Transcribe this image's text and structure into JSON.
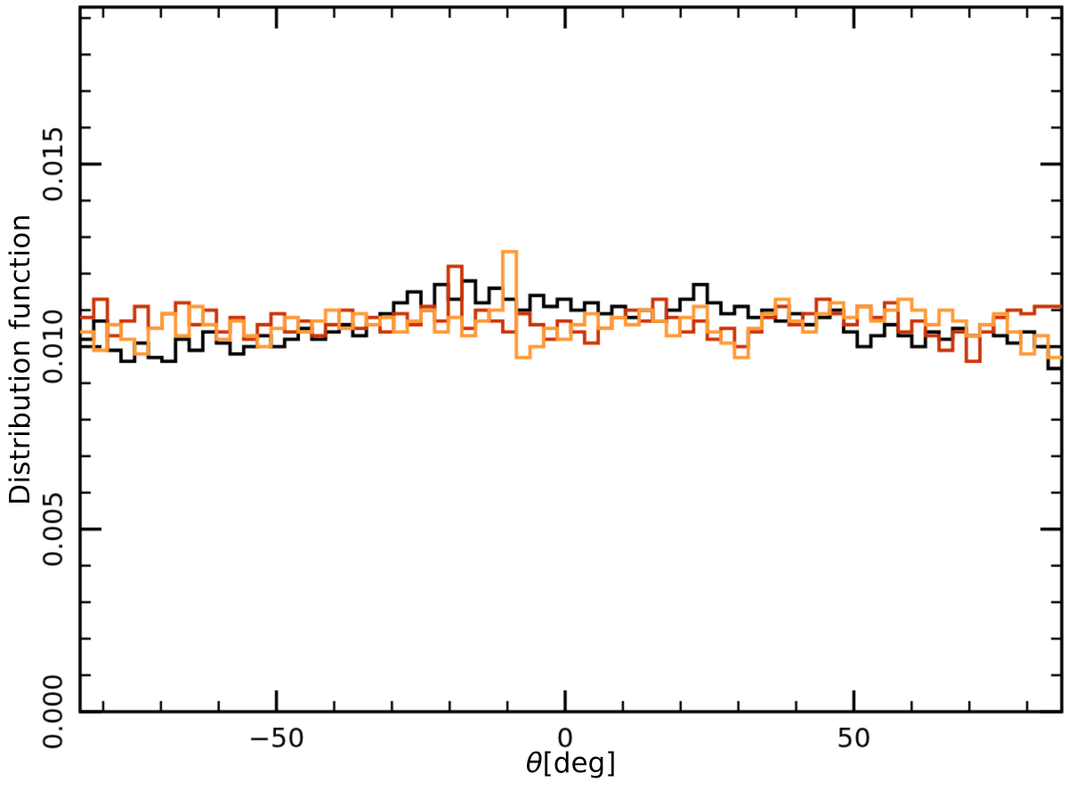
{
  "figure": {
    "background": "#ffffff",
    "ylabel": "Distribution function",
    "xlabel_theta": "θ",
    "xlabel_rest": "[deg]"
  },
  "chart_data": {
    "type": "line",
    "style": "step-histogram",
    "title": "",
    "xlabel": "θ[deg]",
    "ylabel": "Distribution function",
    "xlim": [
      -84,
      86
    ],
    "ylim": [
      0,
      0.0193
    ],
    "grid": false,
    "legend": "none",
    "x_major_ticks": [
      -50,
      0,
      50
    ],
    "x_major_labels": [
      "−50",
      "0",
      "50"
    ],
    "x_minor_step": 10,
    "y_major_ticks": [
      0,
      0.005,
      0.01,
      0.015
    ],
    "y_major_labels": [
      "0.000",
      "0.005",
      "0.010",
      "0.015"
    ],
    "y_minor_step": 0.001,
    "bin_start": -84,
    "bin_width": 2.3611,
    "series": [
      {
        "name": "black-histogram",
        "color": "#000000",
        "values": [
          0.0102,
          0.0107,
          0.0099,
          0.0096,
          0.0101,
          0.0097,
          0.0096,
          0.0102,
          0.0099,
          0.0104,
          0.0101,
          0.0098,
          0.01,
          0.0103,
          0.01,
          0.0102,
          0.0105,
          0.0102,
          0.0104,
          0.0106,
          0.0103,
          0.0106,
          0.0109,
          0.0112,
          0.0115,
          0.011,
          0.0117,
          0.0113,
          0.0118,
          0.0112,
          0.0116,
          0.0113,
          0.011,
          0.0114,
          0.0111,
          0.0113,
          0.011,
          0.0112,
          0.0109,
          0.0111,
          0.0108,
          0.011,
          0.0107,
          0.011,
          0.0113,
          0.0117,
          0.0112,
          0.0109,
          0.0111,
          0.0108,
          0.011,
          0.0107,
          0.0109,
          0.0106,
          0.0108,
          0.011,
          0.0104,
          0.01,
          0.0103,
          0.0106,
          0.0103,
          0.01,
          0.0104,
          0.0102,
          0.0105,
          0.0103,
          0.0106,
          0.0103,
          0.0101,
          0.0104,
          0.01,
          0.0094
        ]
      },
      {
        "name": "red-histogram",
        "color": "#cc3305",
        "values": [
          0.0108,
          0.0113,
          0.0103,
          0.0107,
          0.0111,
          0.0105,
          0.0109,
          0.0112,
          0.0106,
          0.011,
          0.0104,
          0.0108,
          0.0102,
          0.0106,
          0.0109,
          0.0104,
          0.0107,
          0.0103,
          0.0106,
          0.011,
          0.0105,
          0.0108,
          0.0104,
          0.0109,
          0.0106,
          0.0111,
          0.0107,
          0.0122,
          0.0105,
          0.011,
          0.0107,
          0.0104,
          0.0109,
          0.0106,
          0.0102,
          0.0107,
          0.0104,
          0.0101,
          0.0105,
          0.0108,
          0.011,
          0.0107,
          0.0113,
          0.0108,
          0.0104,
          0.0107,
          0.0102,
          0.0105,
          0.01,
          0.0104,
          0.0108,
          0.0111,
          0.0106,
          0.0109,
          0.0113,
          0.0109,
          0.0106,
          0.0111,
          0.0108,
          0.0112,
          0.0104,
          0.0107,
          0.0103,
          0.0099,
          0.0104,
          0.0096,
          0.0104,
          0.0108,
          0.011,
          0.0109,
          0.0111,
          0.0111
        ]
      },
      {
        "name": "orange-histogram",
        "color": "#ff9933",
        "values": [
          0.0104,
          0.0099,
          0.0106,
          0.0102,
          0.0098,
          0.0105,
          0.0109,
          0.0103,
          0.0111,
          0.0106,
          0.0102,
          0.0107,
          0.0103,
          0.01,
          0.0105,
          0.0108,
          0.0104,
          0.0107,
          0.011,
          0.0105,
          0.0109,
          0.0106,
          0.0108,
          0.0104,
          0.0107,
          0.011,
          0.0104,
          0.0108,
          0.0103,
          0.0107,
          0.011,
          0.0126,
          0.0097,
          0.01,
          0.0105,
          0.0102,
          0.0106,
          0.0109,
          0.0105,
          0.0108,
          0.0106,
          0.011,
          0.0107,
          0.0103,
          0.0108,
          0.0111,
          0.0104,
          0.0101,
          0.0097,
          0.0105,
          0.0109,
          0.0113,
          0.0107,
          0.0104,
          0.0109,
          0.0112,
          0.0108,
          0.0111,
          0.0107,
          0.011,
          0.0113,
          0.011,
          0.0106,
          0.011,
          0.0107,
          0.0103,
          0.0106,
          0.0109,
          0.0104,
          0.0098,
          0.0103,
          0.0097
        ]
      }
    ]
  }
}
